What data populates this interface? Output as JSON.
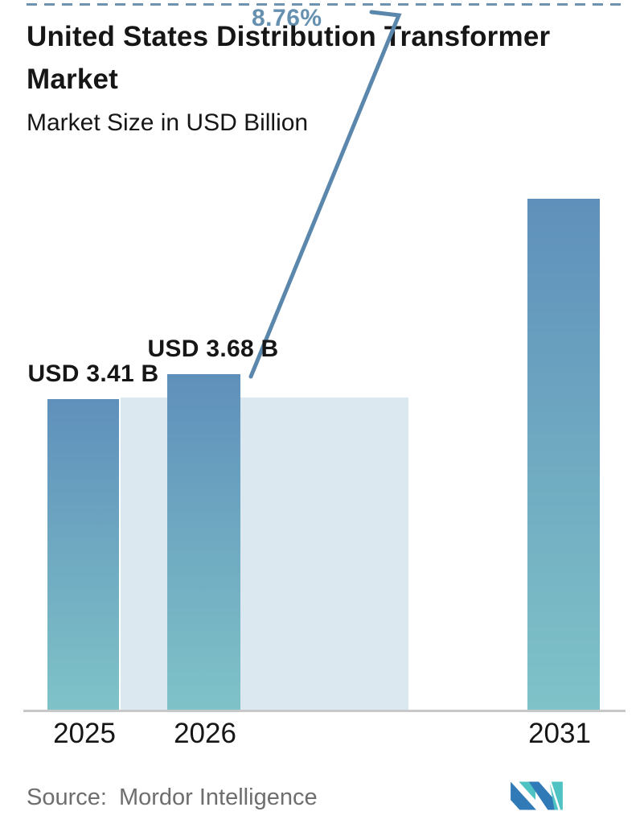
{
  "chart_data": {
    "type": "bar",
    "title": "United States Distribution Transformer Market",
    "subtitle": "Market Size in USD Billion",
    "categories": [
      "2025",
      "2026",
      "2031"
    ],
    "values": [
      3.41,
      3.68,
      5.6
    ],
    "value_labels": [
      "USD 3.41 B",
      "USD 3.68 B",
      ""
    ],
    "growth_label": "8.76%",
    "ylabel": "Market Size in USD Billion",
    "ylim": [
      0,
      5.65
    ],
    "legend": "none",
    "grid": "off",
    "notes": "2031 bar value estimated from bar height; no data label shown. Light band behind 2025-2026 region marks the base-year level. Dashed ceiling line with hooked growth arrow annotates 8.76% CAGR."
  },
  "footer": {
    "source_label": "Source:",
    "source_name": "Mordor Intelligence",
    "logo": "mordor-intelligence-logo"
  },
  "colors": {
    "bar_top": "#5f90bb",
    "bar_bottom": "#7fc3c8",
    "reference_band": "#dce8f0",
    "accent": "#6590b0",
    "arrow": "#5b87ac",
    "dash_line": "#6d92b2",
    "axis": "#c8c8c8",
    "text": "#161616",
    "muted": "#6e6e6e",
    "logo_blue": "#2f7ab7",
    "logo_teal": "#4fc3c3"
  }
}
